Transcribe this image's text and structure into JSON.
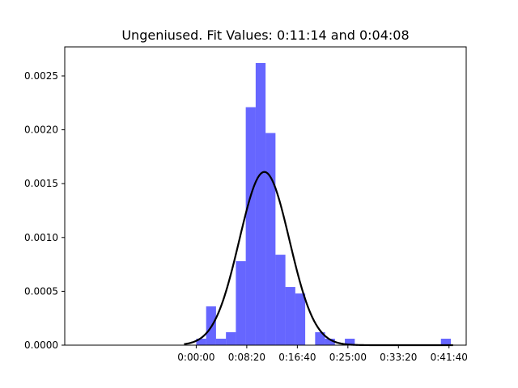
{
  "chart_data": {
    "type": "bar",
    "title": "Ungeniused. Fit Values: 0:11:14 and 0:04:08",
    "xlabel": "",
    "ylabel": "",
    "x_unit": "seconds",
    "xlim": [
      -1300,
      2670
    ],
    "ylim": [
      0,
      0.00277
    ],
    "x_ticks": [
      {
        "value": 0,
        "label": "0:00:00"
      },
      {
        "value": 500,
        "label": "0:08:20"
      },
      {
        "value": 1000,
        "label": "0:16:40"
      },
      {
        "value": 1500,
        "label": "0:25:00"
      },
      {
        "value": 2000,
        "label": "0:33:20"
      },
      {
        "value": 2500,
        "label": "0:41:40"
      }
    ],
    "y_ticks": [
      {
        "value": 0.0,
        "label": "0.0000"
      },
      {
        "value": 0.0005,
        "label": "0.0005"
      },
      {
        "value": 0.001,
        "label": "0.0010"
      },
      {
        "value": 0.0015,
        "label": "0.0015"
      },
      {
        "value": 0.002,
        "label": "0.0020"
      },
      {
        "value": 0.0025,
        "label": "0.0025"
      }
    ],
    "histogram": {
      "color": "#0000ff",
      "opacity": 0.6,
      "bins": [
        {
          "x0": 0,
          "x1": 98,
          "density": 6e-05
        },
        {
          "x0": 98,
          "x1": 196,
          "density": 0.00036
        },
        {
          "x0": 196,
          "x1": 294,
          "density": 6e-05
        },
        {
          "x0": 294,
          "x1": 392,
          "density": 0.00012
        },
        {
          "x0": 392,
          "x1": 490,
          "density": 0.00078
        },
        {
          "x0": 490,
          "x1": 588,
          "density": 0.00221
        },
        {
          "x0": 588,
          "x1": 686,
          "density": 0.00262
        },
        {
          "x0": 686,
          "x1": 784,
          "density": 0.00197
        },
        {
          "x0": 784,
          "x1": 882,
          "density": 0.00084
        },
        {
          "x0": 882,
          "x1": 980,
          "density": 0.00054
        },
        {
          "x0": 980,
          "x1": 1078,
          "density": 0.00048
        },
        {
          "x0": 1078,
          "x1": 1176,
          "density": 0.0
        },
        {
          "x0": 1176,
          "x1": 1274,
          "density": 0.00012
        },
        {
          "x0": 1274,
          "x1": 1372,
          "density": 6e-05
        },
        {
          "x0": 1372,
          "x1": 1470,
          "density": 0.0
        },
        {
          "x0": 1470,
          "x1": 1568,
          "density": 6e-05
        },
        {
          "x0": 2322,
          "x1": 2420,
          "density": 0.0
        },
        {
          "x0": 2420,
          "x1": 2518,
          "density": 6e-05
        }
      ]
    },
    "fit_curve": {
      "type": "normal_pdf",
      "mean": 674,
      "std": 248,
      "x_range": [
        -120,
        2540
      ],
      "color": "#000000"
    },
    "grid": false,
    "legend": "none"
  }
}
